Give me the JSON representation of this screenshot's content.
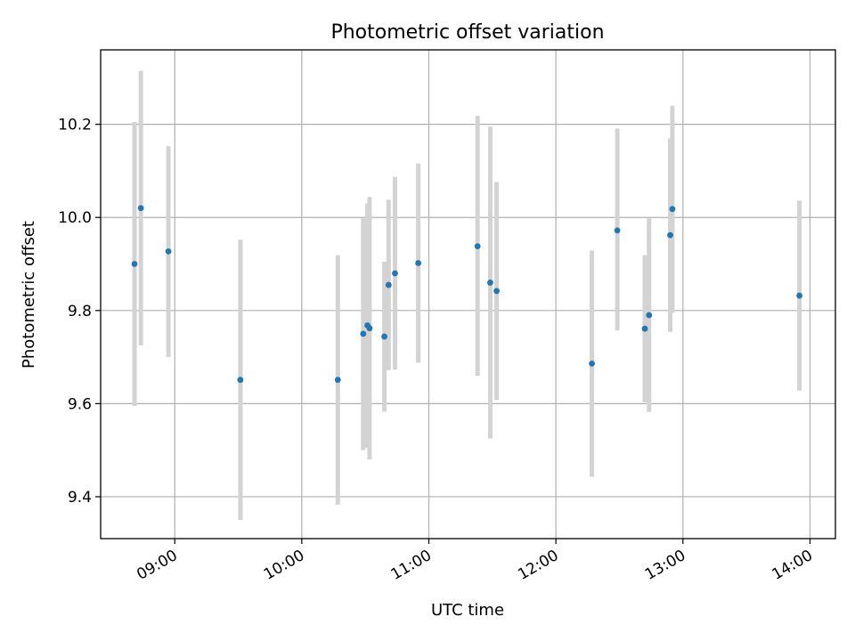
{
  "chart_data": {
    "type": "scatter",
    "title": "Photometric offset variation",
    "xlabel": "UTC time",
    "ylabel": "Photometric offset",
    "x_ticks": [
      "09:00",
      "10:00",
      "11:00",
      "12:00",
      "13:00",
      "14:00"
    ],
    "y_ticks": [
      "9.4",
      "9.6",
      "9.8",
      "10.0",
      "10.2"
    ],
    "xlim": [
      "08:25",
      "14:12"
    ],
    "ylim": [
      9.31,
      10.36
    ],
    "grid": true,
    "colors": {
      "point": "#1f77b4",
      "errorbar": "#d3d3d3",
      "grid": "#b0b0b0"
    },
    "points": [
      {
        "t": "08:41",
        "y": 9.9,
        "lo": 9.595,
        "hi": 10.205
      },
      {
        "t": "08:44",
        "y": 10.02,
        "lo": 9.725,
        "hi": 10.315
      },
      {
        "t": "08:57",
        "y": 9.927,
        "lo": 9.7,
        "hi": 10.153
      },
      {
        "t": "09:31",
        "y": 9.651,
        "lo": 9.35,
        "hi": 9.952
      },
      {
        "t": "10:17",
        "y": 9.651,
        "lo": 9.383,
        "hi": 9.919
      },
      {
        "t": "10:29",
        "y": 9.75,
        "lo": 9.5,
        "hi": 9.998
      },
      {
        "t": "10:31",
        "y": 9.768,
        "lo": 9.505,
        "hi": 10.03
      },
      {
        "t": "10:32",
        "y": 9.762,
        "lo": 9.48,
        "hi": 10.044
      },
      {
        "t": "10:39",
        "y": 9.744,
        "lo": 9.583,
        "hi": 9.905
      },
      {
        "t": "10:41",
        "y": 9.855,
        "lo": 9.672,
        "hi": 10.038
      },
      {
        "t": "10:44",
        "y": 9.88,
        "lo": 9.673,
        "hi": 10.087
      },
      {
        "t": "10:55",
        "y": 9.902,
        "lo": 9.688,
        "hi": 10.116
      },
      {
        "t": "11:23",
        "y": 9.938,
        "lo": 9.66,
        "hi": 10.218
      },
      {
        "t": "11:29",
        "y": 9.86,
        "lo": 9.525,
        "hi": 10.195
      },
      {
        "t": "11:32",
        "y": 9.842,
        "lo": 9.608,
        "hi": 10.076
      },
      {
        "t": "12:17",
        "y": 9.686,
        "lo": 9.443,
        "hi": 9.929
      },
      {
        "t": "12:29",
        "y": 9.972,
        "lo": 9.757,
        "hi": 10.191
      },
      {
        "t": "12:42",
        "y": 9.761,
        "lo": 9.603,
        "hi": 9.919
      },
      {
        "t": "12:44",
        "y": 9.79,
        "lo": 9.582,
        "hi": 9.998
      },
      {
        "t": "12:54",
        "y": 9.962,
        "lo": 9.754,
        "hi": 10.17
      },
      {
        "t": "12:55",
        "y": 10.018,
        "lo": 9.795,
        "hi": 10.24
      },
      {
        "t": "13:55",
        "y": 9.832,
        "lo": 9.628,
        "hi": 10.036
      }
    ]
  }
}
